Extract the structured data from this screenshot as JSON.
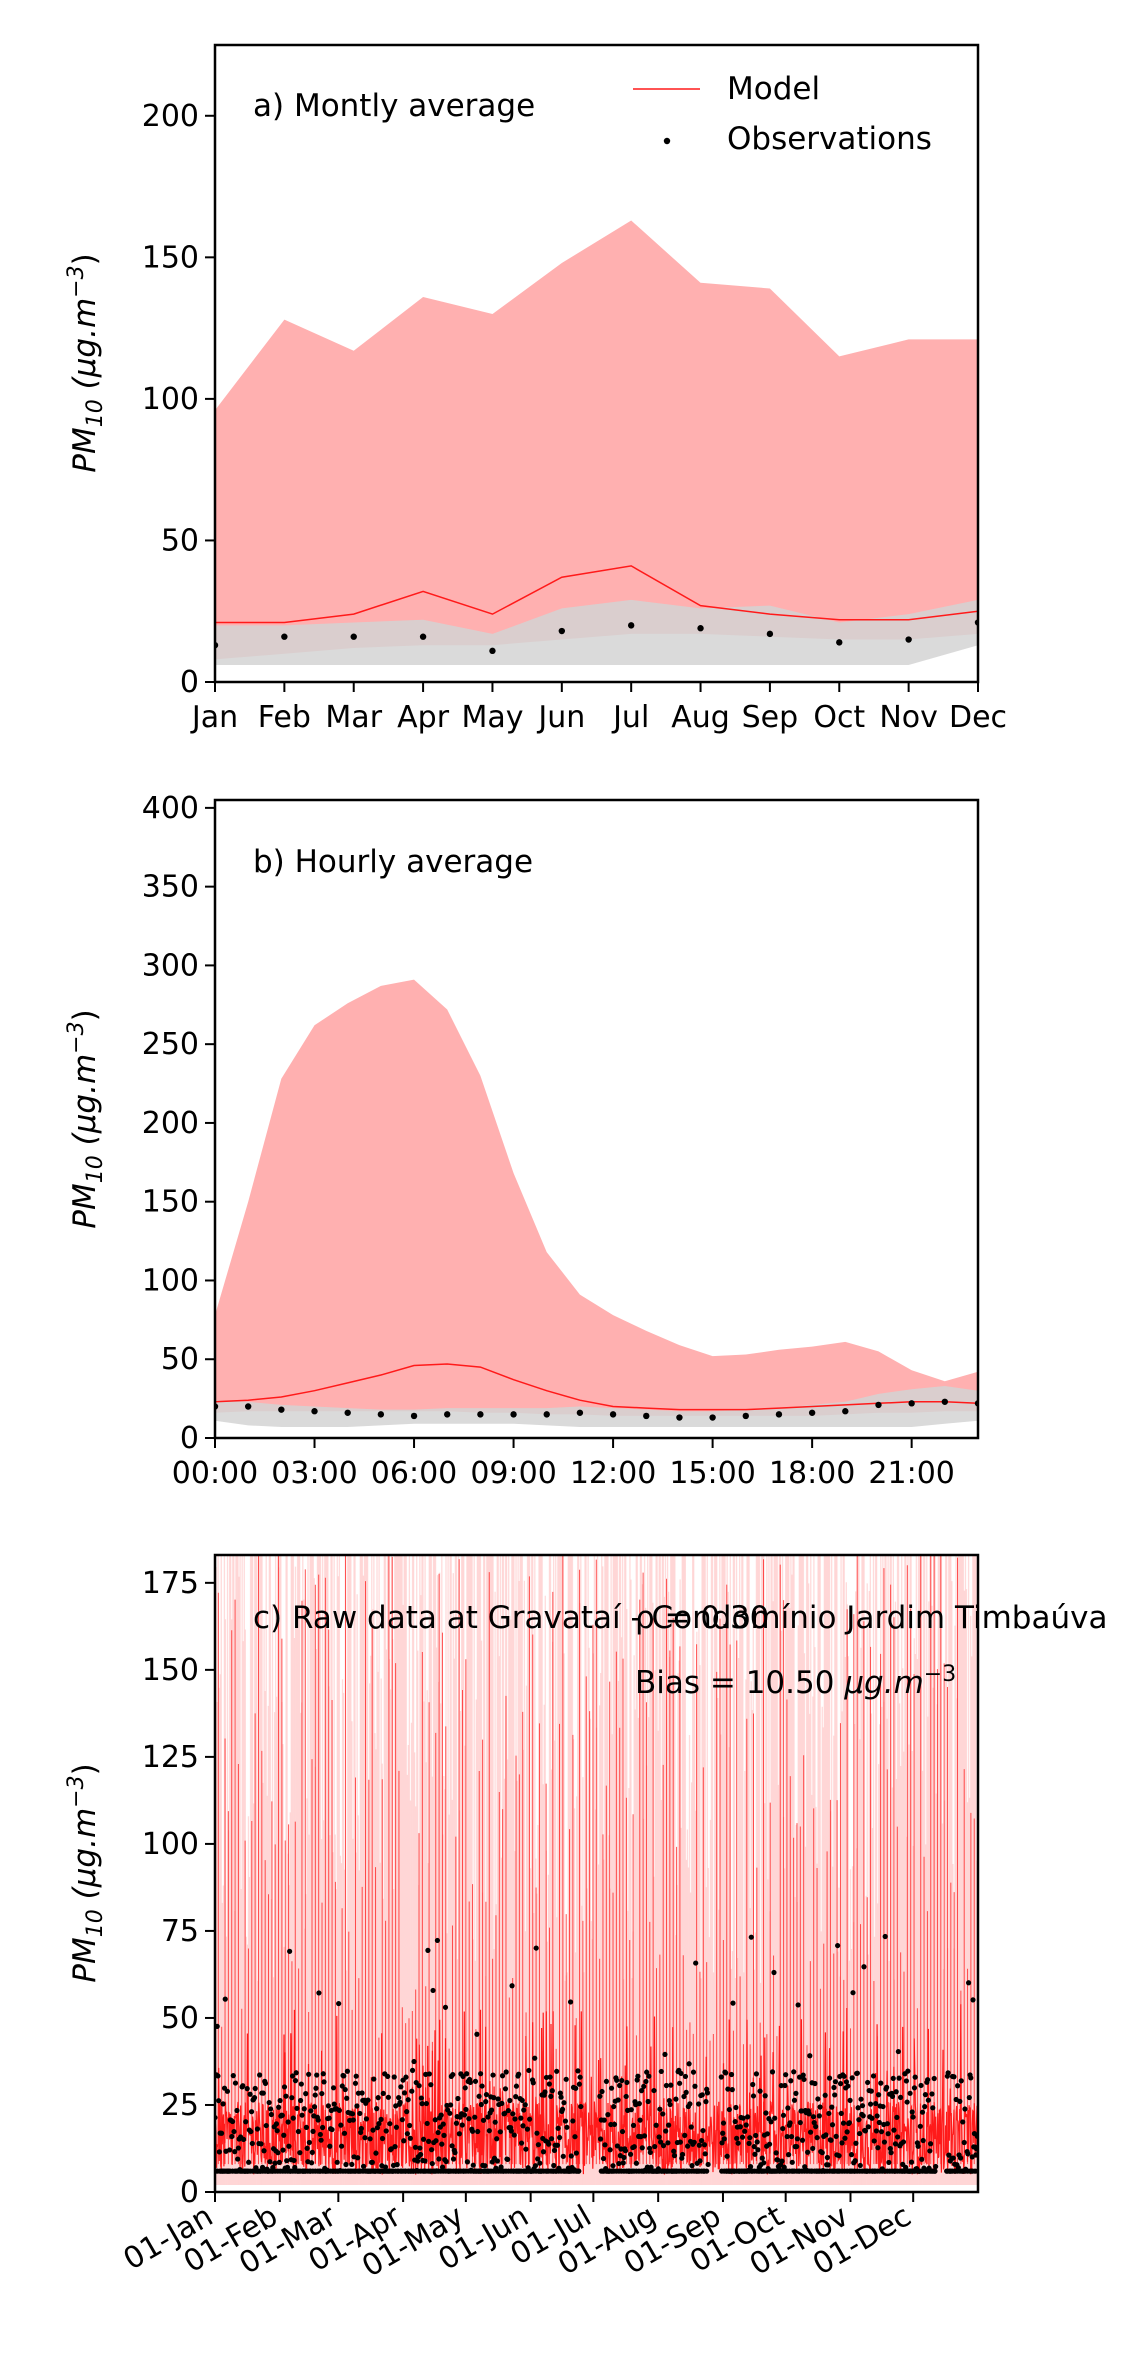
{
  "colors": {
    "model": "#ff1a1a",
    "model_band": "#ffb0b0",
    "obs": "#000000",
    "obs_band": "#d3d3d3"
  },
  "legend": {
    "model": "Model",
    "observations": "Observations"
  },
  "ylabel_main": "PM",
  "ylabel_sub": "10",
  "ylabel_units": "(μg.m",
  "ylabel_exp": "−3",
  "ylabel_close": ")",
  "stats": {
    "rho": "ρ = 0.30",
    "bias": "Bias = 10.50",
    "bias_units": "μg.m",
    "bias_exp": "−3"
  },
  "chart_data": [
    {
      "type": "line",
      "title": "a) Montly average",
      "x": [
        "Jan",
        "Feb",
        "Mar",
        "Apr",
        "May",
        "Jun",
        "Jul",
        "Aug",
        "Sep",
        "Oct",
        "Nov",
        "Dec"
      ],
      "ylim": [
        0,
        225
      ],
      "yticks": [
        0,
        50,
        100,
        150,
        200
      ],
      "series": [
        {
          "name": "Model",
          "kind": "line",
          "values": [
            21,
            21,
            24,
            32,
            24,
            37,
            41,
            27,
            24,
            22,
            22,
            25
          ]
        },
        {
          "name": "Observations",
          "kind": "points",
          "values": [
            13,
            16,
            16,
            16,
            11,
            18,
            20,
            19,
            17,
            14,
            15,
            21
          ]
        }
      ],
      "bands": [
        {
          "kind": "model",
          "upper": [
            96,
            128,
            117,
            136,
            130,
            148,
            163,
            141,
            139,
            115,
            121,
            121
          ],
          "lower": [
            8,
            10,
            12,
            13,
            13,
            15,
            17,
            17,
            16,
            15,
            15,
            17
          ]
        },
        {
          "kind": "obs",
          "upper": [
            20,
            20,
            21,
            22,
            17,
            26,
            29,
            26,
            27,
            21,
            24,
            29
          ],
          "lower": [
            6,
            6,
            6,
            6,
            6,
            6,
            6,
            6,
            6,
            6,
            6,
            13
          ]
        }
      ]
    },
    {
      "type": "line",
      "title": "b) Hourly average",
      "x": [
        0,
        1,
        2,
        3,
        4,
        5,
        6,
        7,
        8,
        9,
        10,
        11,
        12,
        13,
        14,
        15,
        16,
        17,
        18,
        19,
        20,
        21,
        22,
        23
      ],
      "xticks": [
        "00:00",
        "03:00",
        "06:00",
        "09:00",
        "12:00",
        "15:00",
        "18:00",
        "21:00"
      ],
      "ylim": [
        0,
        405
      ],
      "yticks": [
        0,
        50,
        100,
        150,
        200,
        250,
        300,
        350,
        400
      ],
      "series": [
        {
          "name": "Model",
          "kind": "line",
          "values": [
            23,
            24,
            26,
            30,
            35,
            40,
            46,
            47,
            45,
            37,
            30,
            24,
            20,
            19,
            18,
            18,
            18,
            19,
            20,
            21,
            22,
            23,
            23,
            22
          ]
        },
        {
          "name": "Observations",
          "kind": "points",
          "values": [
            20,
            20,
            18,
            17,
            16,
            15,
            14,
            15,
            15,
            15,
            15,
            16,
            15,
            14,
            13,
            13,
            14,
            15,
            16,
            17,
            21,
            22,
            23,
            22
          ]
        }
      ],
      "bands": [
        {
          "kind": "model",
          "upper": [
            78,
            150,
            228,
            262,
            276,
            287,
            291,
            272,
            230,
            168,
            118,
            91,
            78,
            68,
            59,
            52,
            53,
            56,
            58,
            61,
            55,
            43,
            36,
            42
          ],
          "lower": [
            16,
            17,
            17,
            17,
            17,
            17,
            17,
            17,
            16,
            16,
            15,
            15,
            14,
            14,
            14,
            14,
            14,
            14,
            14,
            15,
            16,
            16,
            17,
            17
          ]
        },
        {
          "kind": "obs",
          "upper": [
            24,
            23,
            21,
            20,
            19,
            18,
            18,
            19,
            19,
            19,
            19,
            20,
            19,
            18,
            17,
            17,
            18,
            19,
            21,
            23,
            28,
            31,
            33,
            30
          ],
          "lower": [
            11,
            8,
            7,
            7,
            7,
            8,
            9,
            9,
            9,
            9,
            8,
            7,
            7,
            7,
            7,
            7,
            7,
            7,
            7,
            7,
            7,
            7,
            9,
            11
          ]
        }
      ]
    },
    {
      "type": "line",
      "title": "c) Raw data at Gravataí - Condomínio Jardim Timbaúva",
      "xlabel": "",
      "xticks": [
        "01-Jan",
        "01-Feb",
        "01-Mar",
        "01-Apr",
        "01-May",
        "01-Jun",
        "01-Jul",
        "01-Aug",
        "01-Sep",
        "01-Oct",
        "01-Nov",
        "01-Dec"
      ],
      "xtick_days": [
        0,
        31,
        59,
        90,
        120,
        151,
        181,
        212,
        243,
        273,
        304,
        334
      ],
      "xlim_days": [
        0,
        365
      ],
      "ylim": [
        0,
        183
      ],
      "yticks": [
        0,
        25,
        50,
        75,
        100,
        125,
        150,
        175
      ],
      "obs_gaps_days": [
        [
          175,
          184
        ],
        [
          236,
          242
        ],
        [
          345,
          350
        ]
      ],
      "obs_detection_floor": 6,
      "obs_typical_range": [
        6,
        35
      ],
      "obs_max": 74,
      "model_typical_range": [
        5,
        40
      ],
      "model_band_max": 183,
      "series": [
        {
          "name": "Model",
          "kind": "line"
        },
        {
          "name": "Observations",
          "kind": "points"
        }
      ]
    }
  ]
}
